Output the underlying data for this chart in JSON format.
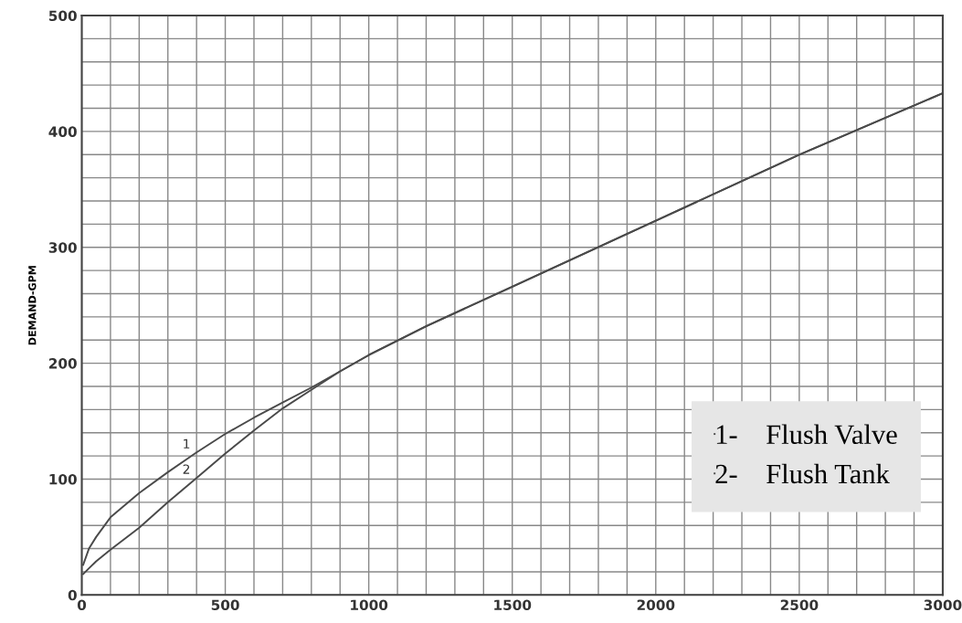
{
  "chart_data": {
    "type": "line",
    "ylabel": "DEMAND-GPM",
    "x": [
      5,
      25,
      50,
      100,
      200,
      300,
      400,
      500,
      600,
      700,
      800,
      900,
      1000,
      1200,
      1500,
      2000,
      2500,
      3000
    ],
    "series": [
      {
        "name": "1-    Flush Valve",
        "color": "#4a4a4a",
        "values": [
          26,
          40,
          50,
          67,
          88,
          106,
          123,
          139,
          153,
          166,
          179,
          193,
          207,
          232,
          266,
          323,
          380,
          433
        ]
      },
      {
        "name": "2-    Flush Tank",
        "color": "#4a4a4a",
        "values": [
          18,
          23,
          29,
          39,
          58,
          80,
          101,
          122,
          142,
          161,
          177,
          193,
          207,
          232,
          266,
          323,
          380,
          433
        ]
      }
    ],
    "annotations": [
      {
        "text": "1",
        "x": 400,
        "y": 123
      },
      {
        "text": "2",
        "x": 400,
        "y": 101
      }
    ],
    "xlim": [
      0,
      3000
    ],
    "ylim": [
      0,
      500
    ],
    "xticks": [
      0,
      {
        "value": 100,
        "label": null
      },
      {
        "value": 200,
        "label": null
      },
      {
        "value": 300,
        "label": null
      },
      {
        "value": 400,
        "label": null
      },
      500,
      {
        "value": 600,
        "label": null
      },
      {
        "value": 700,
        "label": null
      },
      {
        "value": 800,
        "label": null
      },
      {
        "value": 900,
        "label": null
      },
      1000,
      {
        "value": 1100,
        "label": null
      },
      {
        "value": 1200,
        "label": null
      },
      {
        "value": 1300,
        "label": null
      },
      {
        "value": 1400,
        "label": null
      },
      1500,
      {
        "value": 1600,
        "label": null
      },
      {
        "value": 1700,
        "label": null
      },
      {
        "value": 1800,
        "label": null
      },
      {
        "value": 1900,
        "label": null
      },
      2000,
      {
        "value": 2100,
        "label": null
      },
      {
        "value": 2200,
        "label": null
      },
      {
        "value": 2300,
        "label": null
      },
      {
        "value": 2400,
        "label": null
      },
      2500,
      {
        "value": 2600,
        "label": null
      },
      {
        "value": 2700,
        "label": null
      },
      {
        "value": 2800,
        "label": null
      },
      {
        "value": 2900,
        "label": null
      },
      3000
    ],
    "yticks": [
      0,
      {
        "value": 20,
        "label": null
      },
      {
        "value": 40,
        "label": null
      },
      {
        "value": 60,
        "label": null
      },
      {
        "value": 80,
        "label": null
      },
      100,
      {
        "value": 120,
        "label": null
      },
      {
        "value": 140,
        "label": null
      },
      {
        "value": 160,
        "label": null
      },
      {
        "value": 180,
        "label": null
      },
      200,
      {
        "value": 220,
        "label": null
      },
      {
        "value": 240,
        "label": null
      },
      {
        "value": 260,
        "label": null
      },
      {
        "value": 280,
        "label": null
      },
      300,
      {
        "value": 320,
        "label": null
      },
      {
        "value": 340,
        "label": null
      },
      {
        "value": 360,
        "label": null
      },
      {
        "value": 380,
        "label": null
      },
      400,
      {
        "value": 420,
        "label": null
      },
      {
        "value": 440,
        "label": null
      },
      {
        "value": 460,
        "label": null
      },
      {
        "value": 480,
        "label": null
      },
      500
    ],
    "grid": true,
    "legend": "bottom right",
    "line_style": "solid",
    "marker": "none"
  }
}
